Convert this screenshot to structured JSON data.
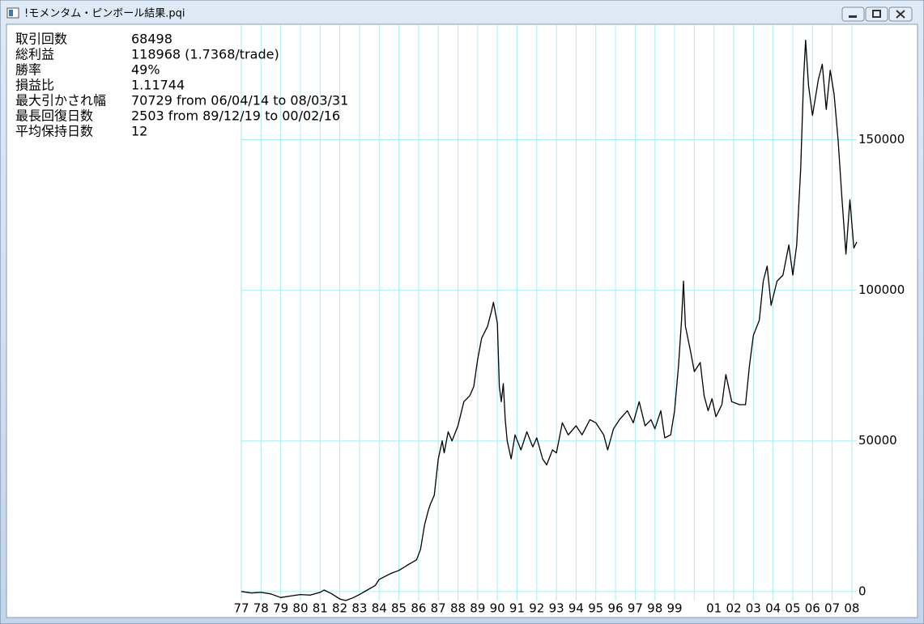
{
  "window": {
    "title": "!モメンタム・ピンボール結果.pqi"
  },
  "stats": [
    {
      "label": "取引回数",
      "value": "68498"
    },
    {
      "label": "総利益",
      "value": "118968 (1.7368/trade)"
    },
    {
      "label": "勝率",
      "value": "49%"
    },
    {
      "label": "損益比",
      "value": "1.11744"
    },
    {
      "label": "最大引かされ幅",
      "value": "70729 from 06/04/14 to 08/03/31"
    },
    {
      "label": "最長回復日数",
      "value": "2503 from 89/12/19 to 00/02/16"
    },
    {
      "label": "平均保持日数",
      "value": "12"
    }
  ],
  "chart_data": {
    "type": "line",
    "color": "#000000",
    "grid": true,
    "grid_color": "#aaeef4",
    "xlim": [
      1977,
      2008.25
    ],
    "ylim": [
      -3000,
      188000
    ],
    "xticks": [
      {
        "value": 1977,
        "label": "77"
      },
      {
        "value": 1978,
        "label": "78"
      },
      {
        "value": 1979,
        "label": "79"
      },
      {
        "value": 1980,
        "label": "80"
      },
      {
        "value": 1981,
        "label": "81"
      },
      {
        "value": 1982,
        "label": "82"
      },
      {
        "value": 1983,
        "label": "83"
      },
      {
        "value": 1984,
        "label": "84"
      },
      {
        "value": 1985,
        "label": "85"
      },
      {
        "value": 1986,
        "label": "86"
      },
      {
        "value": 1987,
        "label": "87"
      },
      {
        "value": 1988,
        "label": "88"
      },
      {
        "value": 1989,
        "label": "89"
      },
      {
        "value": 1990,
        "label": "90"
      },
      {
        "value": 1991,
        "label": "91"
      },
      {
        "value": 1992,
        "label": "92"
      },
      {
        "value": 1993,
        "label": "93"
      },
      {
        "value": 1994,
        "label": "94"
      },
      {
        "value": 1995,
        "label": "95"
      },
      {
        "value": 1996,
        "label": "96"
      },
      {
        "value": 1997,
        "label": "97"
      },
      {
        "value": 1998,
        "label": "98"
      },
      {
        "value": 1999,
        "label": "99"
      },
      {
        "value": 2000,
        "label": null
      },
      {
        "value": 2001,
        "label": "01"
      },
      {
        "value": 2002,
        "label": "02"
      },
      {
        "value": 2003,
        "label": "03"
      },
      {
        "value": 2004,
        "label": "04"
      },
      {
        "value": 2005,
        "label": "05"
      },
      {
        "value": 2006,
        "label": "06"
      },
      {
        "value": 2007,
        "label": "07"
      },
      {
        "value": 2008,
        "label": "08"
      }
    ],
    "yticks": [
      0,
      50000,
      100000,
      150000
    ],
    "x": [
      1977.0,
      1977.5,
      1978.0,
      1978.5,
      1979.0,
      1979.5,
      1980.0,
      1980.5,
      1981.0,
      1981.2,
      1981.6,
      1982.0,
      1982.3,
      1982.7,
      1983.0,
      1983.4,
      1983.8,
      1984.0,
      1984.3,
      1984.6,
      1985.0,
      1985.5,
      1985.9,
      1986.1,
      1986.3,
      1986.5,
      1986.6,
      1986.8,
      1987.0,
      1987.2,
      1987.3,
      1987.5,
      1987.7,
      1988.0,
      1988.3,
      1988.6,
      1988.8,
      1989.0,
      1989.2,
      1989.5,
      1989.7,
      1989.8,
      1990.0,
      1990.1,
      1990.2,
      1990.3,
      1990.4,
      1990.5,
      1990.7,
      1990.9,
      1991.2,
      1991.5,
      1991.8,
      1992.0,
      1992.3,
      1992.5,
      1992.8,
      1993.0,
      1993.3,
      1993.6,
      1994.0,
      1994.3,
      1994.7,
      1995.0,
      1995.4,
      1995.6,
      1995.9,
      1996.2,
      1996.6,
      1996.9,
      1997.2,
      1997.5,
      1997.8,
      1998.0,
      1998.3,
      1998.5,
      1998.8,
      1999.0,
      1999.2,
      1999.35,
      1999.45,
      1999.55,
      1999.8,
      2000.0,
      2000.3,
      2000.5,
      2000.7,
      2000.9,
      2001.1,
      2001.4,
      2001.6,
      2001.9,
      2002.3,
      2002.6,
      2002.8,
      2003.0,
      2003.3,
      2003.5,
      2003.7,
      2003.9,
      2004.2,
      2004.5,
      2004.8,
      2005.0,
      2005.2,
      2005.4,
      2005.55,
      2005.65,
      2005.8,
      2006.0,
      2006.3,
      2006.5,
      2006.7,
      2006.9,
      2007.1,
      2007.3,
      2007.5,
      2007.7,
      2007.9,
      2008.1,
      2008.25
    ],
    "values": [
      0,
      -500,
      -300,
      -800,
      -2000,
      -1500,
      -1000,
      -1200,
      -300,
      500,
      -800,
      -2500,
      -3000,
      -2000,
      -1000,
      500,
      2000,
      4000,
      5000,
      6000,
      7000,
      9000,
      10500,
      14000,
      22000,
      27000,
      29000,
      32000,
      44000,
      50000,
      46000,
      53000,
      50000,
      55000,
      63000,
      65000,
      68000,
      77000,
      84000,
      88000,
      93000,
      96000,
      89000,
      68000,
      63000,
      69000,
      57000,
      50000,
      44000,
      52000,
      47000,
      53000,
      48000,
      51000,
      44000,
      42000,
      47000,
      46000,
      56000,
      52000,
      55000,
      52000,
      57000,
      56000,
      52000,
      47000,
      54000,
      57000,
      60000,
      56000,
      63000,
      55000,
      57000,
      54000,
      60000,
      51000,
      52000,
      60000,
      75000,
      90000,
      103000,
      88000,
      80000,
      73000,
      76000,
      65000,
      60000,
      64000,
      58000,
      62000,
      72000,
      63000,
      62000,
      62000,
      75000,
      85000,
      90000,
      103000,
      108000,
      95000,
      103000,
      105000,
      115000,
      105000,
      115000,
      140000,
      170000,
      183000,
      168000,
      158000,
      170000,
      175000,
      160000,
      173000,
      165000,
      150000,
      130000,
      112000,
      130000,
      114000,
      116000
    ]
  }
}
